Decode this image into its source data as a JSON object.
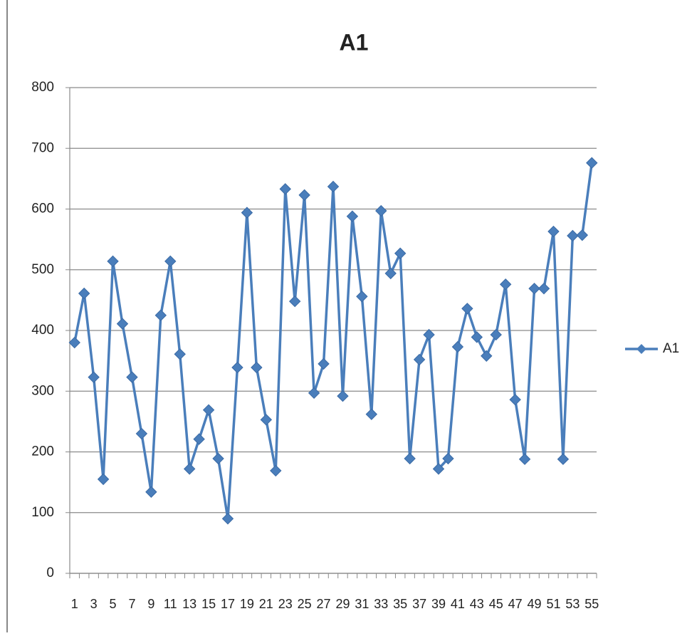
{
  "chart_data": {
    "type": "line",
    "title": "A1",
    "categories": [
      1,
      null,
      3,
      null,
      5,
      null,
      7,
      null,
      9,
      null,
      11,
      null,
      13,
      null,
      15,
      null,
      17,
      null,
      19,
      null,
      21,
      null,
      23,
      null,
      25,
      null,
      27,
      null,
      29,
      null,
      31,
      null,
      33,
      null,
      35,
      null,
      37,
      null,
      39,
      null,
      41,
      null,
      43,
      null,
      45,
      null,
      47,
      null,
      49,
      null,
      51,
      null,
      53,
      null,
      55
    ],
    "series": [
      {
        "name": "A1",
        "color": "#4a7ebb",
        "values": [
          380,
          461,
          323,
          155,
          514,
          411,
          323,
          230,
          134,
          425,
          514,
          361,
          172,
          221,
          269,
          189,
          90,
          339,
          594,
          339,
          253,
          169,
          633,
          448,
          623,
          297,
          345,
          637,
          292,
          588,
          456,
          262,
          597,
          494,
          527,
          189,
          352,
          393,
          172,
          189,
          373,
          436,
          389,
          358,
          393,
          476,
          286,
          188,
          469,
          469,
          563,
          188,
          556,
          557,
          676
        ]
      }
    ],
    "ylim": [
      0,
      800
    ],
    "yticks": [
      0,
      100,
      200,
      300,
      400,
      500,
      600,
      700,
      800
    ],
    "grid": true,
    "legend": "right"
  }
}
